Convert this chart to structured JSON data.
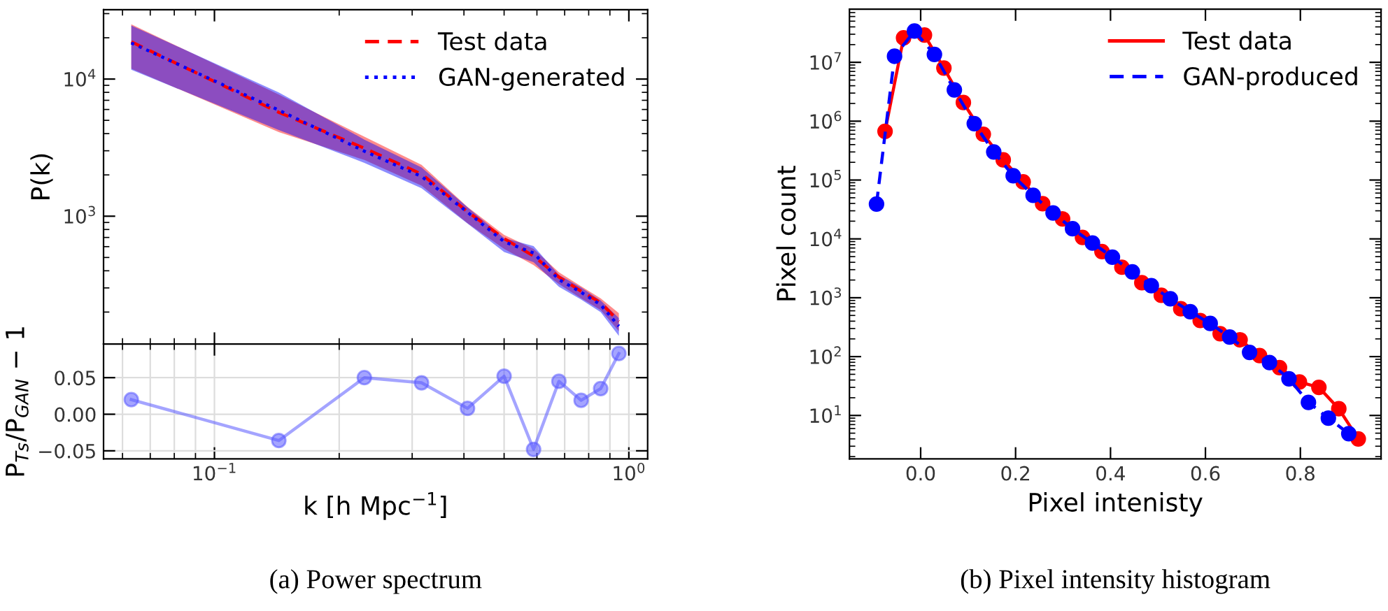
{
  "chart_data": [
    {
      "type": "line",
      "ylabel": "P(k)",
      "log": "xy",
      "xlim": [
        0.054,
        1.11
      ],
      "ylim": [
        117,
        32000
      ],
      "xticks": [
        {
          "value": 0.1,
          "label": null
        },
        {
          "value": 1,
          "label": null
        }
      ],
      "yticks": [
        {
          "value": 1000,
          "label": "10$^{3}$"
        },
        {
          "value": 10000,
          "label": "10$^{4}$"
        }
      ],
      "tick_labels": "y",
      "legend": "top right",
      "grid": false,
      "marker": "none",
      "x": [
        0.063,
        0.143,
        0.23,
        0.316,
        0.408,
        0.5,
        0.589,
        0.678,
        0.767,
        0.855,
        0.946
      ],
      "series": [
        {
          "name": "Test data",
          "color": "#ff0000",
          "line_style": "dashed",
          "values": [
            18700,
            5720,
            3130,
            2030,
            1080,
            686,
            513,
            360,
            284,
            234,
            171
          ],
          "lower": [
            11900,
            4100,
            2570,
            1670,
            890,
            577,
            440,
            320,
            252,
            207,
            145
          ],
          "upper": [
            25100,
            7700,
            3800,
            2370,
            1170,
            730,
            577,
            390,
            308,
            252,
            196
          ]
        },
        {
          "name": "GAN-generated",
          "color": "#0000ff",
          "line_style": "dotted",
          "values": [
            18330,
            5930,
            2980,
            1950,
            1070,
            652,
            539,
            345,
            279,
            226,
            158
          ],
          "lower": [
            11700,
            4250,
            2450,
            1600,
            883,
            548,
            462,
            306,
            247,
            200,
            134
          ],
          "upper": [
            24600,
            7990,
            3620,
            2270,
            1160,
            694,
            606,
            373,
            302,
            243,
            181
          ]
        }
      ]
    },
    {
      "type": "line",
      "xlabel": "k [h Mpc$^{−1}$]",
      "ylabel": "P$_{Ts}$/P$_{GAN}$ − 1",
      "log": "x",
      "xlim": [
        0.054,
        1.11
      ],
      "ylim": [
        -0.061,
        0.096
      ],
      "xticks": [
        {
          "value": 0.1,
          "label": "10$^{−1}$"
        },
        {
          "value": 1,
          "label": "10$^{0}$"
        }
      ],
      "yticks": [
        {
          "value": -0.05,
          "label": "−0.05"
        },
        {
          "value": 0,
          "label": "0.00"
        },
        {
          "value": 0.05,
          "label": "0.05"
        }
      ],
      "grid": true,
      "marker": "circle",
      "line_style": "solid",
      "x": [
        0.063,
        0.143,
        0.23,
        0.316,
        0.408,
        0.5,
        0.589,
        0.678,
        0.767,
        0.855,
        0.946
      ],
      "series": [
        {
          "color": "#5a5aff",
          "values": [
            0.02,
            -0.036,
            0.05,
            0.043,
            0.008,
            0.052,
            -0.048,
            0.045,
            0.019,
            0.035,
            0.083
          ]
        }
      ],
      "annotations": [
        "(a) Power spectrum"
      ]
    },
    {
      "type": "line",
      "xlabel": "Pixel intenisty",
      "ylabel": "Pixel count",
      "log": "y",
      "xlim": [
        -0.15,
        0.97
      ],
      "ylim": [
        1.83,
        80000000
      ],
      "xticks": [
        {
          "value": 0,
          "label": "0.0"
        },
        {
          "value": 0.2,
          "label": "0.2"
        },
        {
          "value": 0.4,
          "label": "0.4"
        },
        {
          "value": 0.6,
          "label": "0.6"
        },
        {
          "value": 0.8,
          "label": "0.8"
        }
      ],
      "yticks": [
        {
          "value": 10,
          "label": "10$^{1}$"
        },
        {
          "value": 100,
          "label": "10$^{2}$"
        },
        {
          "value": 1000,
          "label": "10$^{3}$"
        },
        {
          "value": 10000,
          "label": "10$^{4}$"
        },
        {
          "value": 100000,
          "label": "10$^{5}$"
        },
        {
          "value": 1000000,
          "label": "10$^{6}$"
        },
        {
          "value": 10000000,
          "label": "10$^{7}$"
        }
      ],
      "legend": "top right",
      "grid": false,
      "marker": "circle",
      "series": [
        {
          "name": "Test data",
          "color": "#ff0000",
          "line_style": "solid",
          "x": [
            -0.075,
            -0.036,
            0.008,
            0.049,
            0.09,
            0.132,
            0.174,
            0.216,
            0.257,
            0.299,
            0.341,
            0.382,
            0.424,
            0.466,
            0.507,
            0.548,
            0.589,
            0.631,
            0.673,
            0.714,
            0.756,
            0.798,
            0.839,
            0.881,
            0.922
          ],
          "values": [
            670000,
            26000000,
            29000000,
            8000000,
            2070000,
            600000,
            220000,
            93000,
            39600,
            21800,
            10600,
            6100,
            3300,
            1800,
            1100,
            650,
            410,
            245,
            193,
            104,
            65,
            37,
            30,
            13,
            4.0
          ]
        },
        {
          "name": "GAN-produced",
          "color": "#0000ff",
          "line_style": "dashed",
          "x": [
            -0.093,
            -0.055,
            -0.013,
            0.029,
            0.071,
            0.113,
            0.154,
            0.195,
            0.237,
            0.279,
            0.32,
            0.362,
            0.404,
            0.446,
            0.486,
            0.526,
            0.568,
            0.61,
            0.651,
            0.693,
            0.735,
            0.776,
            0.817,
            0.859,
            0.902
          ],
          "values": [
            39000,
            12700000,
            34000000,
            13600000,
            3400000,
            910000,
            300000,
            118000,
            55000,
            27600,
            14900,
            8500,
            4900,
            2760,
            1600,
            960,
            580,
            366,
            215,
            118,
            79,
            42,
            16.7,
            9.0,
            4.9
          ]
        }
      ],
      "annotations": [
        "(b) Pixel intensity histogram"
      ]
    }
  ]
}
